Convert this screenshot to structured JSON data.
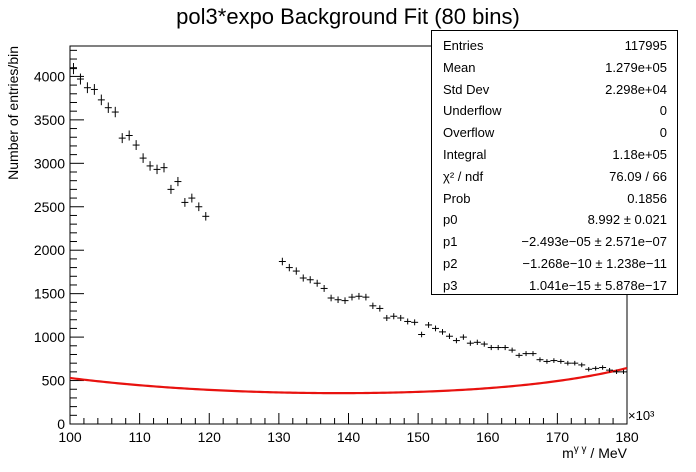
{
  "chart_data": {
    "type": "scatter",
    "title": "pol3*expo Background Fit (80 bins)",
    "xlabel": "m^{γγ} / MeV",
    "ylabel": "Number of entries/bin",
    "x_multiplier_label": "×10³",
    "xlim": [
      100,
      180
    ],
    "ylim": [
      0,
      4350
    ],
    "x_ticks": [
      "100",
      "110",
      "120",
      "130",
      "140",
      "150",
      "160",
      "170",
      "180"
    ],
    "y_ticks": [
      "0",
      "500",
      "1000",
      "1500",
      "2000",
      "2500",
      "3000",
      "3500",
      "4000"
    ],
    "grid": false,
    "bin_width": 1,
    "colors": {
      "data": "#000000",
      "fit": "#e8120f",
      "axis": "#000000"
    },
    "series": [
      {
        "kind": "points_with_errors",
        "x": [
          100.5,
          101.5,
          102.5,
          103.5,
          104.5,
          105.5,
          106.5,
          107.5,
          108.5,
          109.5,
          110.5,
          111.5,
          112.5,
          113.5,
          114.5,
          115.5,
          116.5,
          117.5,
          118.5,
          119.5,
          130.5,
          131.5,
          132.5,
          133.5,
          134.5,
          135.5,
          136.5,
          137.5,
          138.5,
          139.5,
          140.5,
          141.5,
          142.5,
          143.5,
          144.5,
          145.5,
          146.5,
          147.5,
          148.5,
          149.5,
          150.5,
          151.5,
          152.5,
          153.5,
          154.5,
          155.5,
          156.5,
          157.5,
          158.5,
          159.5,
          160.5,
          161.5,
          162.5,
          163.5,
          164.5,
          165.5,
          166.5,
          167.5,
          168.5,
          169.5,
          170.5,
          171.5,
          172.5,
          173.5,
          174.5,
          175.5,
          176.5,
          177.5,
          178.5,
          179.5
        ],
        "y": [
          4090,
          3970,
          3870,
          3850,
          3730,
          3640,
          3590,
          3290,
          3320,
          3210,
          3060,
          2970,
          2930,
          2950,
          2700,
          2790,
          2550,
          2600,
          2500,
          2390,
          1870,
          1800,
          1760,
          1680,
          1660,
          1620,
          1560,
          1450,
          1430,
          1420,
          1460,
          1470,
          1460,
          1360,
          1330,
          1220,
          1240,
          1220,
          1180,
          1170,
          1030,
          1140,
          1100,
          1060,
          1010,
          960,
          1000,
          930,
          940,
          920,
          880,
          880,
          880,
          850,
          790,
          810,
          810,
          740,
          720,
          730,
          720,
          700,
          700,
          680,
          630,
          640,
          650,
          620,
          600,
          600
        ]
      },
      {
        "kind": "fit_curve",
        "name": "",
        "function": "exp(p0 + p1*x + p2*x^2 + p3*x^3)",
        "params": {
          "p0": 8.992,
          "p1": -2.493e-05,
          "p2": -1.268e-10,
          "p3": 1.041e-15
        }
      }
    ]
  },
  "stats_box": [
    {
      "label": "Entries",
      "value": "117995"
    },
    {
      "label": "Mean",
      "value": "1.279e+05"
    },
    {
      "label": "Std Dev",
      "value": "2.298e+04"
    },
    {
      "label": "Underflow",
      "value": "0"
    },
    {
      "label": "Overflow",
      "value": "0"
    },
    {
      "label": "Integral",
      "value": "1.18e+05"
    },
    {
      "label": "χ² / ndf",
      "value": "76.09 / 66"
    },
    {
      "label": "Prob",
      "value": "0.1856"
    },
    {
      "label": "p0",
      "value": "8.992 ± 0.021"
    },
    {
      "label": "p1",
      "value": "−2.493e−05 ± 2.571e−07"
    },
    {
      "label": "p2",
      "value": "−1.268e−10 ± 1.238e−11"
    },
    {
      "label": "p3",
      "value": "1.041e−15 ± 5.878e−17"
    }
  ]
}
